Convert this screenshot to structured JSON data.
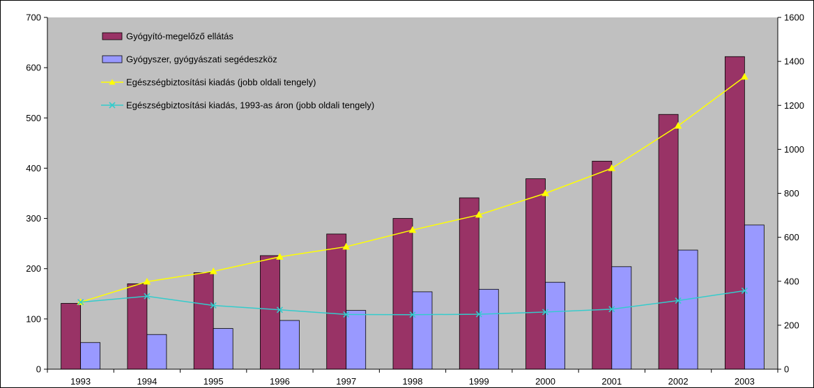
{
  "chart_data": {
    "type": "bar",
    "categories": [
      "1993",
      "1994",
      "1995",
      "1996",
      "1997",
      "1998",
      "1999",
      "2000",
      "2001",
      "2002",
      "2003"
    ],
    "series": [
      {
        "name": "Gyógyító-megelőző ellátás",
        "kind": "bar",
        "axis": "left",
        "color": "#993366",
        "values": [
          131,
          170,
          192,
          226,
          269,
          300,
          341,
          379,
          414,
          507,
          622
        ]
      },
      {
        "name": "Gyógyszer, gyógyászati segédeszköz",
        "kind": "bar",
        "axis": "left",
        "color": "#9999ff",
        "values": [
          53,
          69,
          81,
          97,
          117,
          154,
          159,
          173,
          204,
          237,
          287
        ]
      },
      {
        "name": "Egészségbiztosítási kiadás (jobb oldali tengely)",
        "kind": "line",
        "axis": "right",
        "color": "#ffff00",
        "marker": "triangle",
        "values": [
          305,
          398,
          445,
          511,
          557,
          633,
          702,
          800,
          914,
          1107,
          1330
        ]
      },
      {
        "name": "Egészségbiztosítási kiadás, 1993-as áron (jobb oldali tengely)",
        "kind": "line",
        "axis": "right",
        "color": "#33cccc",
        "marker": "x",
        "values": [
          305,
          332,
          290,
          270,
          249,
          248,
          250,
          260,
          273,
          312,
          357
        ]
      }
    ],
    "y_left": {
      "range": [
        0,
        700
      ],
      "ticks": [
        "0",
        "100",
        "200",
        "300",
        "400",
        "500",
        "600",
        "700"
      ]
    },
    "y_right": {
      "range": [
        0,
        1600
      ],
      "ticks": [
        "0",
        "200",
        "400",
        "600",
        "800",
        "1000",
        "1200",
        "1400",
        "1600"
      ]
    },
    "plot_background": "#c0c0c0",
    "grid": false,
    "legend_position": "top-left inside plot"
  }
}
